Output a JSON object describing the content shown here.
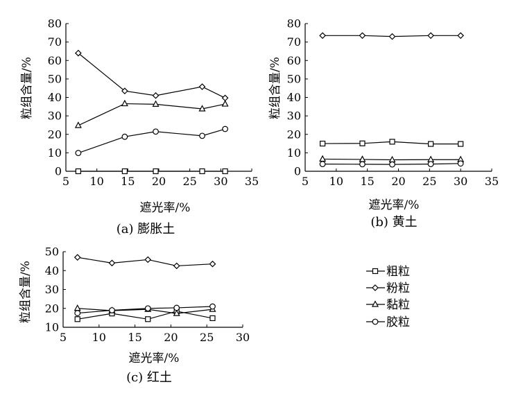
{
  "legend": {
    "items": [
      {
        "label": "粗粒",
        "marker": "square"
      },
      {
        "label": "粉粒",
        "marker": "diamond"
      },
      {
        "label": "黏粒",
        "marker": "triangle"
      },
      {
        "label": "胶粒",
        "marker": "circle"
      }
    ]
  },
  "chart_data": [
    {
      "type": "line",
      "caption": "(a) 膨胀土",
      "xlabel": "遮光率/%",
      "ylabel": "粒组含量/%",
      "xlim": [
        5,
        35
      ],
      "ylim": [
        0,
        80
      ],
      "xticks": [
        5,
        10,
        15,
        20,
        25,
        30,
        35
      ],
      "yticks": [
        0,
        10,
        20,
        30,
        40,
        50,
        60,
        70,
        80
      ],
      "grid": false,
      "x": [
        7,
        14.5,
        19.5,
        27,
        30.7
      ],
      "series": [
        {
          "name": "粗粒",
          "marker": "square",
          "values": [
            0,
            0,
            0,
            0,
            0
          ]
        },
        {
          "name": "粉粒",
          "marker": "diamond",
          "values": [
            64,
            43.5,
            41,
            45.8,
            39.7
          ]
        },
        {
          "name": "黏粒",
          "marker": "triangle",
          "values": [
            24.8,
            36.6,
            36.3,
            33.8,
            36.4
          ]
        },
        {
          "name": "胶粒",
          "marker": "circle",
          "values": [
            9.9,
            18.7,
            21.5,
            19.2,
            22.9
          ]
        }
      ]
    },
    {
      "type": "line",
      "caption": "(b) 黄土",
      "xlabel": "遮光率/%",
      "ylabel": "粒组含量/%",
      "xlim": [
        5,
        35
      ],
      "ylim": [
        0,
        80
      ],
      "xticks": [
        5,
        10,
        15,
        20,
        25,
        30,
        35
      ],
      "yticks": [
        0,
        10,
        20,
        30,
        40,
        50,
        60,
        70,
        80
      ],
      "grid": false,
      "x": [
        7.8,
        14.2,
        19,
        25.2,
        30
      ],
      "series": [
        {
          "name": "粗粒",
          "marker": "square",
          "values": [
            15,
            15.1,
            16,
            14.8,
            14.8
          ]
        },
        {
          "name": "粉粒",
          "marker": "diamond",
          "values": [
            73.5,
            73.5,
            73,
            73.5,
            73.5
          ]
        },
        {
          "name": "黏粒",
          "marker": "triangle",
          "values": [
            6.6,
            6.4,
            6.2,
            6.3,
            6.3
          ]
        },
        {
          "name": "胶粒",
          "marker": "circle",
          "values": [
            3.9,
            3.8,
            3.7,
            3.9,
            4.2
          ]
        }
      ]
    },
    {
      "type": "line",
      "caption": "(c) 红土",
      "xlabel": "遮光率/%",
      "ylabel": "粒组含量/%",
      "xlim": [
        5,
        30
      ],
      "ylim": [
        10,
        50
      ],
      "xticks": [
        5,
        10,
        15,
        20,
        25,
        30
      ],
      "yticks": [
        10,
        20,
        30,
        40,
        50
      ],
      "grid": false,
      "x": [
        7,
        11.8,
        16.8,
        20.8,
        25.8
      ],
      "series": [
        {
          "name": "粗粒",
          "marker": "square",
          "values": [
            14.3,
            17.3,
            14.3,
            18.5,
            14.8
          ]
        },
        {
          "name": "粉粒",
          "marker": "diamond",
          "values": [
            47,
            44,
            45.8,
            42.5,
            43.5
          ]
        },
        {
          "name": "黏粒",
          "marker": "triangle",
          "values": [
            20,
            18.8,
            19.5,
            17.3,
            19.5
          ]
        },
        {
          "name": "胶粒",
          "marker": "circle",
          "values": [
            17.5,
            19,
            20,
            20.3,
            21
          ]
        }
      ]
    }
  ]
}
